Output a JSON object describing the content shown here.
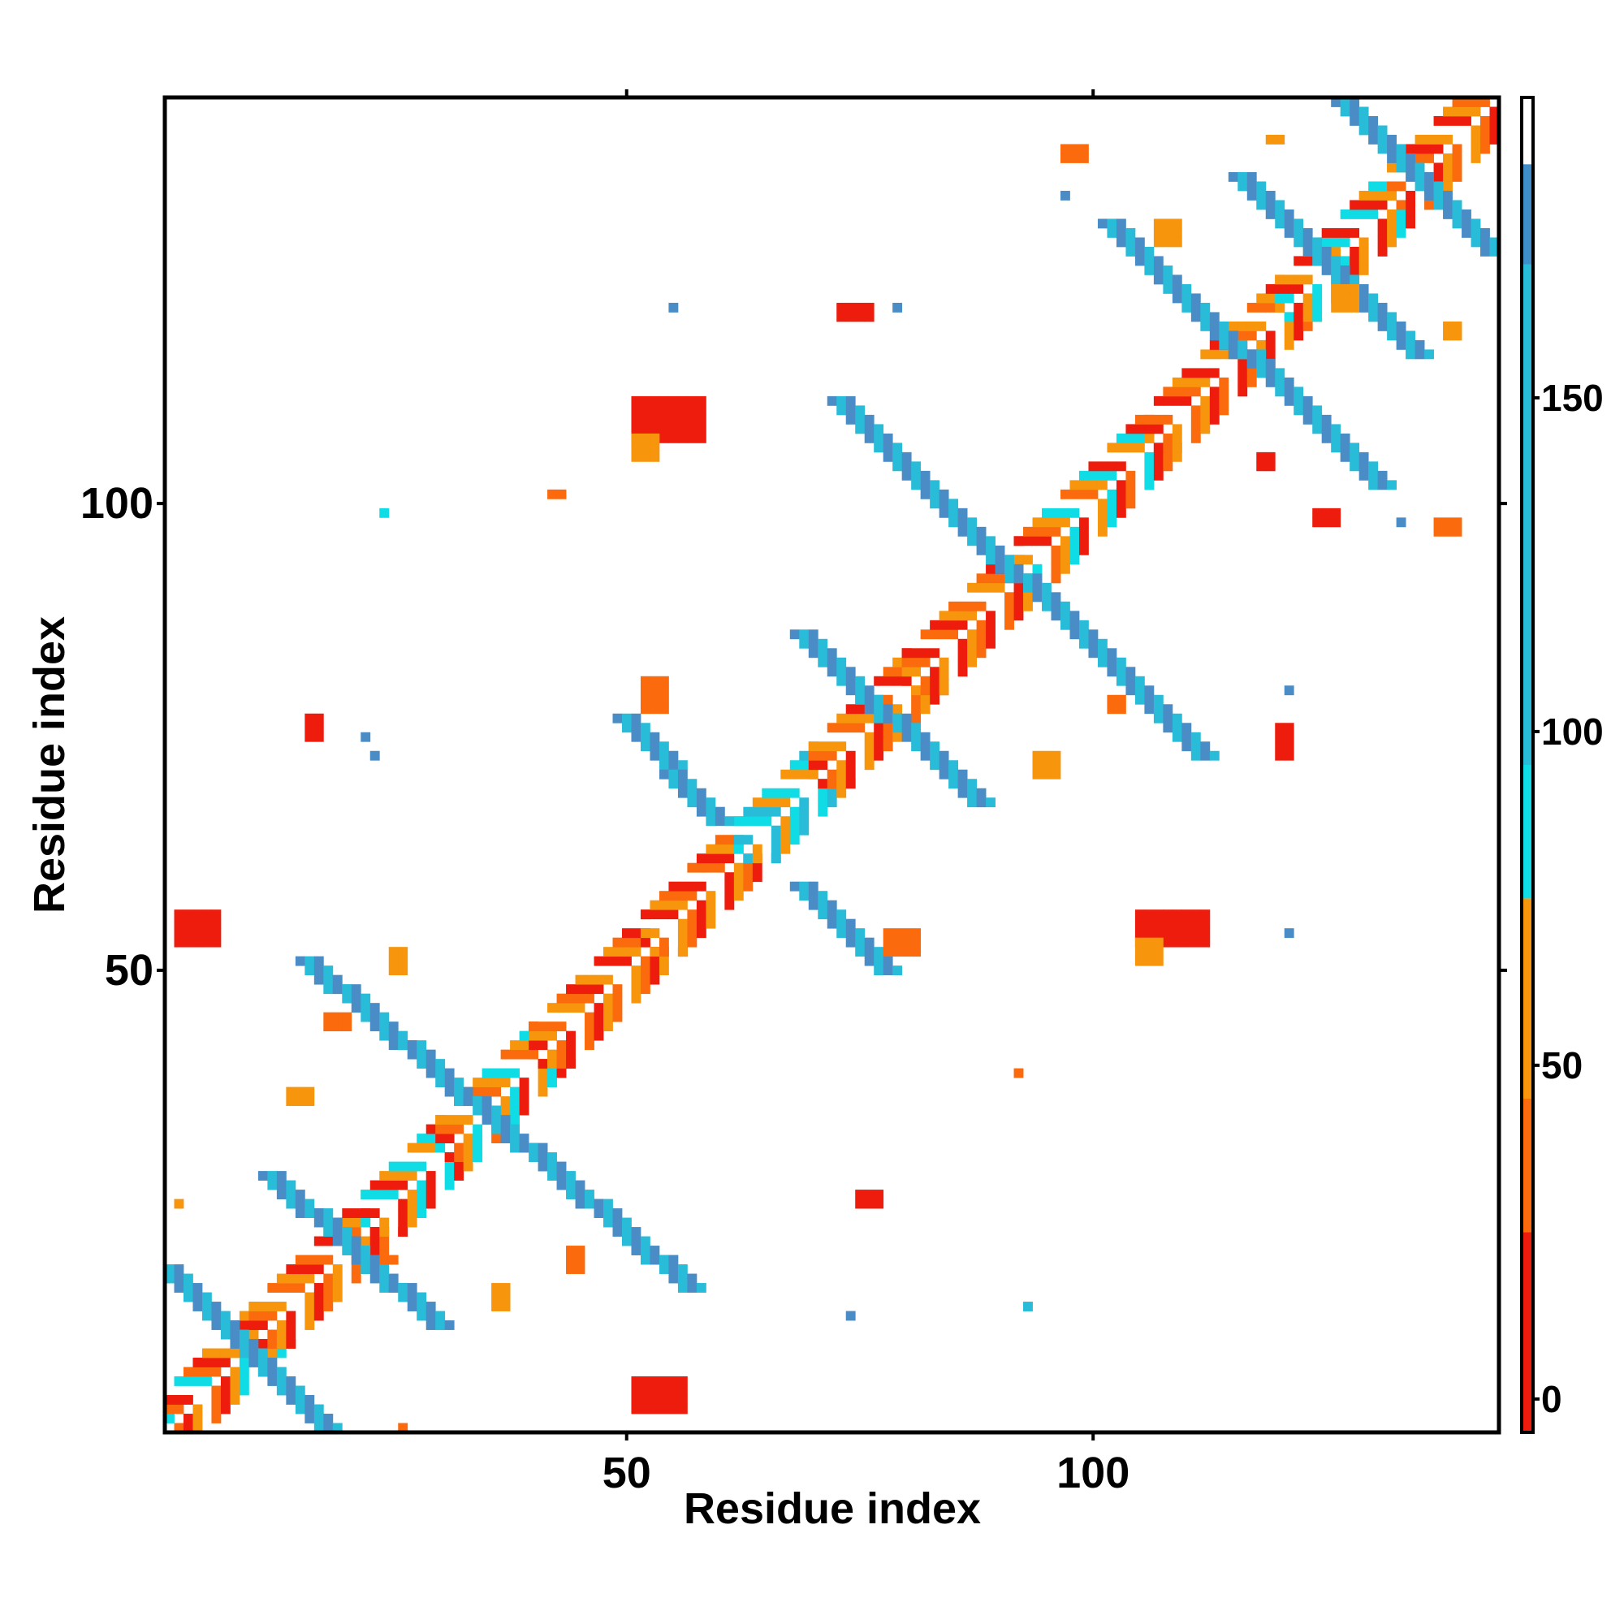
{
  "chart_data": {
    "type": "heatmap",
    "title": "",
    "xlabel": "Residue index",
    "ylabel": "Residue index",
    "x_range": [
      1,
      143
    ],
    "y_range": [
      1,
      143
    ],
    "x_ticks": [
      50,
      100
    ],
    "y_ticks": [
      50,
      100
    ],
    "x_tick_labels": [
      "50",
      "100"
    ],
    "y_tick_labels": [
      "50",
      "100"
    ],
    "grid": false,
    "colorbar": {
      "position": "right",
      "range": [
        -5,
        195
      ],
      "ticks": [
        0,
        50,
        100,
        150
      ],
      "tick_labels": [
        "0",
        "50",
        "100",
        "150"
      ],
      "bands": [
        {
          "from": -5,
          "to": 25,
          "color": "#ee1c0c"
        },
        {
          "from": 25,
          "to": 45,
          "color": "#fb6a0c"
        },
        {
          "from": 45,
          "to": 75,
          "color": "#f7950d"
        },
        {
          "from": 75,
          "to": 95,
          "color": "#10dce6"
        },
        {
          "from": 95,
          "to": 170,
          "color": "#28bcd9"
        },
        {
          "from": 170,
          "to": 185,
          "color": "#3e8fc9"
        },
        {
          "from": 185,
          "to": 195,
          "color": "#ffffff"
        }
      ]
    },
    "colors": {
      "red": "#ee1c0c",
      "orange": "#f7950d",
      "dark_orange": "#fb6a0c",
      "cyan": "#10dce6",
      "light_blue": "#28bcd9",
      "steel_blue": "#4a8cc6"
    },
    "diagonal_band": {
      "from": 1,
      "to": 143,
      "segments": [
        {
          "from": 1,
          "to": 10,
          "colors": [
            "red",
            "orange",
            "cyan",
            "dark_orange"
          ]
        },
        {
          "from": 10,
          "to": 22,
          "colors": [
            "red",
            "dark_orange",
            "orange"
          ]
        },
        {
          "from": 22,
          "to": 30,
          "colors": [
            "red",
            "orange",
            "cyan"
          ]
        },
        {
          "from": 30,
          "to": 40,
          "colors": [
            "red",
            "dark_orange",
            "orange",
            "cyan"
          ]
        },
        {
          "from": 40,
          "to": 52,
          "colors": [
            "red",
            "orange",
            "dark_orange"
          ]
        },
        {
          "from": 52,
          "to": 62,
          "colors": [
            "orange",
            "dark_orange",
            "red"
          ]
        },
        {
          "from": 62,
          "to": 70,
          "colors": [
            "cyan",
            "light_blue",
            "orange"
          ]
        },
        {
          "from": 70,
          "to": 80,
          "colors": [
            "red",
            "dark_orange",
            "orange"
          ]
        },
        {
          "from": 80,
          "to": 92,
          "colors": [
            "red",
            "orange",
            "dark_orange"
          ]
        },
        {
          "from": 92,
          "to": 106,
          "colors": [
            "red",
            "dark_orange",
            "orange",
            "cyan"
          ]
        },
        {
          "from": 106,
          "to": 120,
          "colors": [
            "red",
            "dark_orange",
            "orange"
          ]
        },
        {
          "from": 120,
          "to": 132,
          "colors": [
            "red",
            "orange",
            "cyan"
          ]
        },
        {
          "from": 132,
          "to": 143,
          "colors": [
            "red",
            "orange",
            "dark_orange"
          ]
        }
      ]
    },
    "anti_diagonal_strips": [
      {
        "from": [
          1,
          18
        ],
        "to": [
          18,
          1
        ],
        "colors": [
          "steel_blue",
          "light_blue"
        ]
      },
      {
        "from": [
          12,
          28
        ],
        "to": [
          30,
          12
        ],
        "colors": [
          "steel_blue",
          "light_blue"
        ]
      },
      {
        "from": [
          16,
          51
        ],
        "to": [
          57,
          16
        ],
        "colors": [
          "steel_blue",
          "light_blue"
        ]
      },
      {
        "from": [
          50,
          77
        ],
        "to": [
          60,
          66
        ],
        "colors": [
          "steel_blue",
          "light_blue"
        ]
      },
      {
        "from": [
          69,
          86
        ],
        "to": [
          88,
          68
        ],
        "colors": [
          "steel_blue",
          "light_blue"
        ]
      },
      {
        "from": [
          69,
          59
        ],
        "to": [
          78,
          50
        ],
        "colors": [
          "steel_blue",
          "light_blue"
        ]
      },
      {
        "from": [
          73,
          111
        ],
        "to": [
          112,
          73
        ],
        "colors": [
          "steel_blue",
          "light_blue"
        ]
      },
      {
        "from": [
          102,
          130
        ],
        "to": [
          131,
          102
        ],
        "colors": [
          "steel_blue",
          "light_blue"
        ]
      },
      {
        "from": [
          116,
          135
        ],
        "to": [
          135,
          116
        ],
        "colors": [
          "steel_blue",
          "light_blue"
        ]
      },
      {
        "from": [
          127,
          143
        ],
        "to": [
          143,
          127
        ],
        "colors": [
          "steel_blue",
          "light_blue"
        ]
      }
    ],
    "clusters": [
      {
        "x": 2,
        "y": 53,
        "w": 5,
        "h": 4,
        "color": "red"
      },
      {
        "x": 51,
        "y": 3,
        "w": 6,
        "h": 4,
        "color": "red"
      },
      {
        "x": 51,
        "y": 107,
        "w": 8,
        "h": 5,
        "color": "red"
      },
      {
        "x": 105,
        "y": 53,
        "w": 8,
        "h": 4,
        "color": "red"
      },
      {
        "x": 51,
        "y": 105,
        "w": 3,
        "h": 3,
        "color": "orange"
      },
      {
        "x": 105,
        "y": 51,
        "w": 3,
        "h": 3,
        "color": "orange"
      },
      {
        "x": 73,
        "y": 120,
        "w": 4,
        "h": 2,
        "color": "red"
      },
      {
        "x": 120,
        "y": 73,
        "w": 2,
        "h": 4,
        "color": "red"
      },
      {
        "x": 75,
        "y": 25,
        "w": 3,
        "h": 2,
        "color": "red"
      },
      {
        "x": 16,
        "y": 75,
        "w": 2,
        "h": 3,
        "color": "red"
      },
      {
        "x": 25,
        "y": 50,
        "w": 2,
        "h": 3,
        "color": "orange"
      },
      {
        "x": 78,
        "y": 52,
        "w": 4,
        "h": 3,
        "color": "dark_orange"
      },
      {
        "x": 52,
        "y": 78,
        "w": 3,
        "h": 4,
        "color": "dark_orange"
      },
      {
        "x": 18,
        "y": 44,
        "w": 3,
        "h": 2,
        "color": "dark_orange"
      },
      {
        "x": 44,
        "y": 18,
        "w": 2,
        "h": 3,
        "color": "dark_orange"
      },
      {
        "x": 36,
        "y": 14,
        "w": 2,
        "h": 3,
        "color": "orange"
      },
      {
        "x": 14,
        "y": 36,
        "w": 3,
        "h": 2,
        "color": "orange"
      },
      {
        "x": 118,
        "y": 104,
        "w": 2,
        "h": 2,
        "color": "red"
      },
      {
        "x": 102,
        "y": 78,
        "w": 2,
        "h": 2,
        "color": "dark_orange"
      },
      {
        "x": 94,
        "y": 71,
        "w": 3,
        "h": 3,
        "color": "orange"
      },
      {
        "x": 126,
        "y": 121,
        "w": 3,
        "h": 3,
        "color": "orange"
      },
      {
        "x": 137,
        "y": 97,
        "w": 3,
        "h": 2,
        "color": "dark_orange"
      },
      {
        "x": 97,
        "y": 137,
        "w": 3,
        "h": 2,
        "color": "dark_orange"
      },
      {
        "x": 107,
        "y": 128,
        "w": 3,
        "h": 3,
        "color": "orange"
      },
      {
        "x": 119,
        "y": 139,
        "w": 2,
        "h": 1,
        "color": "orange"
      },
      {
        "x": 138,
        "y": 118,
        "w": 2,
        "h": 2,
        "color": "orange"
      },
      {
        "x": 124,
        "y": 98,
        "w": 3,
        "h": 2,
        "color": "red"
      },
      {
        "x": 42,
        "y": 101,
        "w": 2,
        "h": 1,
        "color": "dark_orange"
      },
      {
        "x": 24,
        "y": 19,
        "w": 2,
        "h": 1,
        "color": "dark_orange"
      }
    ],
    "isolated_points": [
      {
        "x": 24,
        "y": 99,
        "color": "cyan"
      },
      {
        "x": 55,
        "y": 121,
        "color": "steel_blue"
      },
      {
        "x": 79,
        "y": 121,
        "color": "steel_blue"
      },
      {
        "x": 93,
        "y": 14,
        "color": "light_blue"
      },
      {
        "x": 74,
        "y": 13,
        "color": "steel_blue"
      },
      {
        "x": 121,
        "y": 80,
        "color": "steel_blue"
      },
      {
        "x": 121,
        "y": 54,
        "color": "steel_blue"
      },
      {
        "x": 133,
        "y": 98,
        "color": "steel_blue"
      },
      {
        "x": 97,
        "y": 133,
        "color": "steel_blue"
      },
      {
        "x": 23,
        "y": 73,
        "color": "steel_blue"
      },
      {
        "x": 22,
        "y": 75,
        "color": "steel_blue"
      },
      {
        "x": 92,
        "y": 39,
        "color": "dark_orange"
      },
      {
        "x": 26,
        "y": 1,
        "color": "dark_orange"
      },
      {
        "x": 2,
        "y": 25,
        "color": "orange"
      }
    ]
  }
}
